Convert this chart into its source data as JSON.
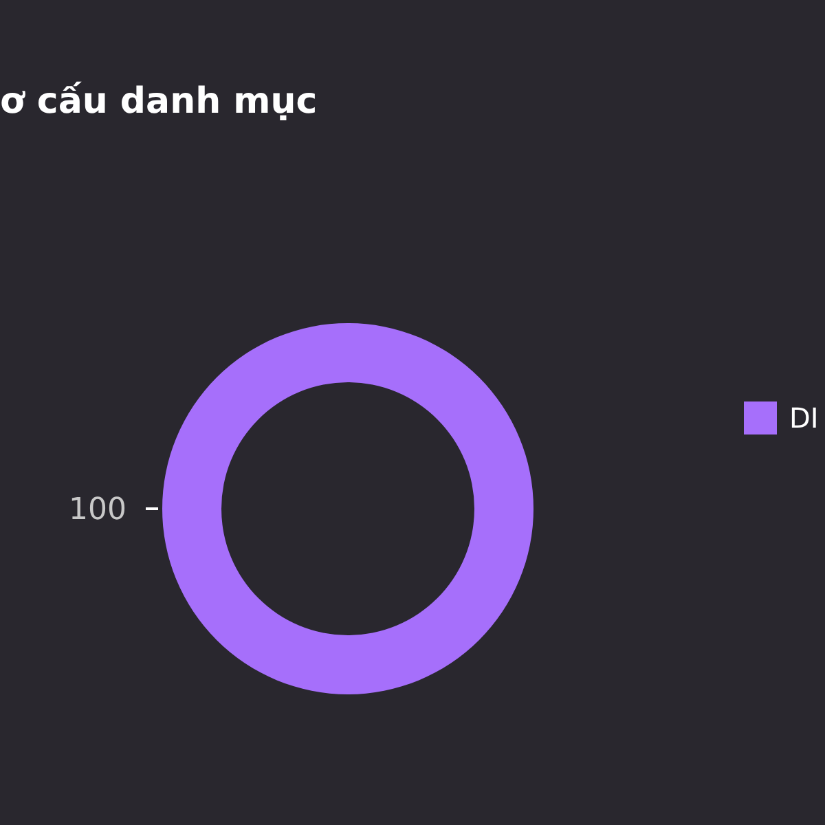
{
  "chart_data": {
    "type": "donut",
    "title": "ơ cấu danh mục",
    "categories": [
      "DI"
    ],
    "values": [
      100
    ],
    "colors": [
      "#a66ffb"
    ],
    "data_labels": true,
    "legend": "right"
  }
}
